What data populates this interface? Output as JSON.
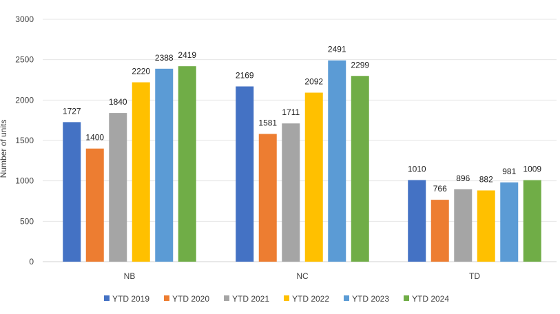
{
  "chart_data": {
    "type": "bar",
    "title": "",
    "xlabel": "",
    "ylabel": "Number of units",
    "ylim": [
      0,
      3000
    ],
    "yticks": [
      0,
      500,
      1000,
      1500,
      2000,
      2500,
      3000
    ],
    "grid": true,
    "legend_position": "bottom",
    "categories": [
      "NB",
      "NC",
      "TD"
    ],
    "series": [
      {
        "name": "YTD 2019",
        "color": "#4472c4",
        "values": [
          1727,
          2169,
          1010
        ]
      },
      {
        "name": "YTD 2020",
        "color": "#ed7d31",
        "values": [
          1400,
          1581,
          766
        ]
      },
      {
        "name": "YTD 2021",
        "color": "#a5a5a5",
        "values": [
          1840,
          1711,
          896
        ]
      },
      {
        "name": "YTD 2022",
        "color": "#ffc000",
        "values": [
          2220,
          2092,
          882
        ]
      },
      {
        "name": "YTD 2023",
        "color": "#5b9bd5",
        "values": [
          2388,
          2491,
          981
        ]
      },
      {
        "name": "YTD 2024",
        "color": "#70ad47",
        "values": [
          2419,
          2299,
          1009
        ]
      }
    ]
  }
}
